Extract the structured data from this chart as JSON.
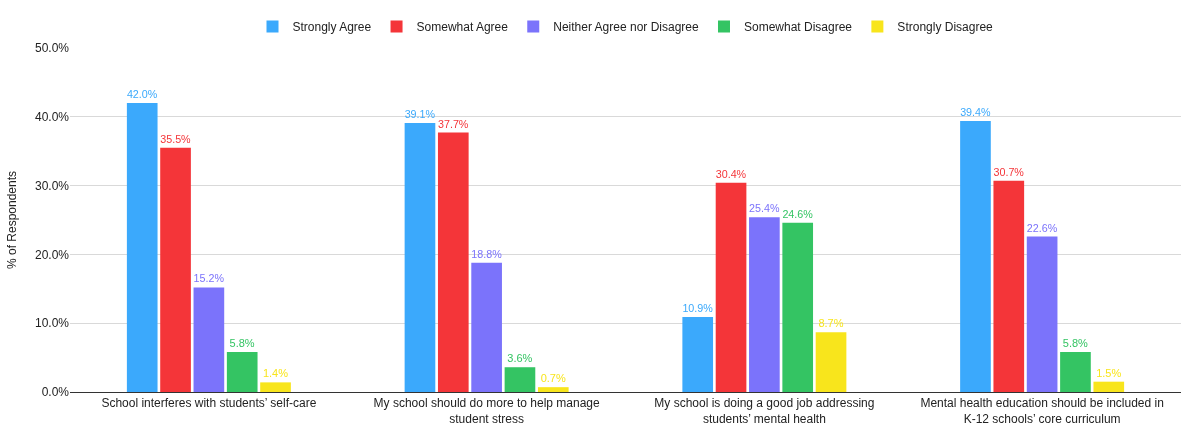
{
  "chart_data": {
    "type": "bar",
    "ylabel": "% of Respondents",
    "categories": [
      "School interferes with students’ self-care",
      "My school should do more to help manage student stress",
      "My school is doing a good job addressing students’ mental health",
      "Mental health education should be included in K-12 schools’ core curriculum"
    ],
    "series": [
      {
        "name": "Strongly Agree",
        "color": "#3ba9fc",
        "values": [
          42.0,
          39.1,
          10.9,
          39.4
        ],
        "value_labels": [
          "42.0%",
          "39.1%",
          "10.9%",
          "39.4%"
        ]
      },
      {
        "name": "Somewhat Agree",
        "color": "#f43539",
        "values": [
          35.5,
          37.7,
          30.4,
          30.7
        ],
        "value_labels": [
          "35.5%",
          "37.7%",
          "30.4%",
          "30.7%"
        ]
      },
      {
        "name": "Neither Agree nor Disagree",
        "color": "#7b73fb",
        "values": [
          15.2,
          18.8,
          25.4,
          22.6
        ],
        "value_labels": [
          "15.2%",
          "18.8%",
          "25.4%",
          "22.6%"
        ]
      },
      {
        "name": "Somewhat Disagree",
        "color": "#34c463",
        "values": [
          5.8,
          3.6,
          24.6,
          5.8
        ],
        "value_labels": [
          "5.8%",
          "3.6%",
          "24.6%",
          "5.8%"
        ]
      },
      {
        "name": "Strongly Disagree",
        "color": "#f8e51c",
        "values": [
          1.4,
          0.7,
          8.7,
          1.5
        ],
        "value_labels": [
          "1.4%",
          "0.7%",
          "8.7%",
          "1.5%"
        ]
      }
    ],
    "ylim": [
      0,
      50
    ],
    "yticks": [
      {
        "value": 0,
        "label": "0.0%"
      },
      {
        "value": 10,
        "label": "10.0%"
      },
      {
        "value": 20,
        "label": "20.0%"
      },
      {
        "value": 30,
        "label": "30.0%"
      },
      {
        "value": 40,
        "label": "40.0%"
      },
      {
        "value": 50,
        "label": "50.0%"
      }
    ],
    "grid": "y",
    "legend": "top"
  }
}
